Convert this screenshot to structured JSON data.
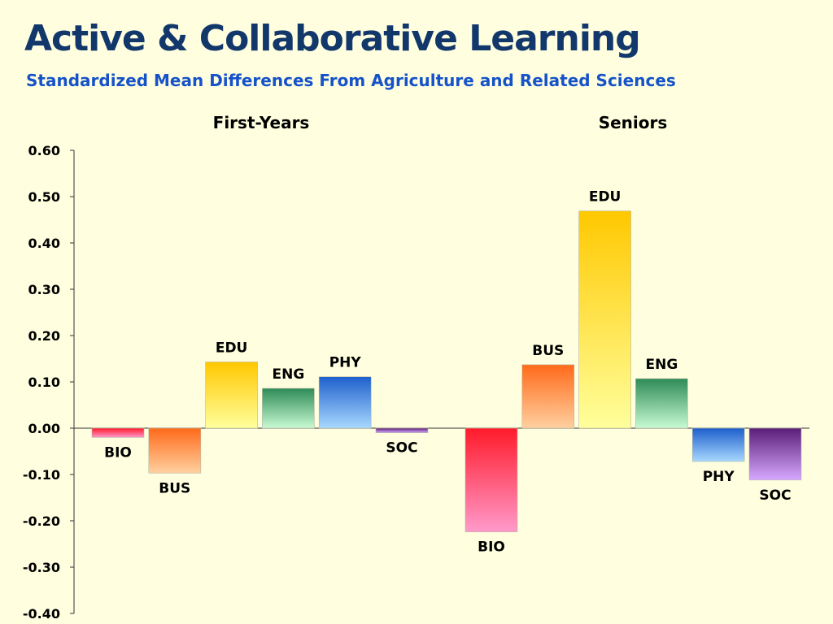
{
  "header": {
    "title": "Active & Collaborative Learning",
    "subtitle": "Standardized Mean Differences From Agriculture and Related Sciences"
  },
  "chart_data": {
    "type": "bar",
    "ylim": [
      -0.4,
      0.6
    ],
    "yticks": [
      "0.60",
      "0.50",
      "0.40",
      "0.30",
      "0.20",
      "0.10",
      "0.00",
      "-0.10",
      "-0.20",
      "-0.30",
      "-0.40"
    ],
    "ytick_values": [
      0.6,
      0.5,
      0.4,
      0.3,
      0.2,
      0.1,
      0.0,
      -0.1,
      -0.2,
      -0.3,
      -0.4
    ],
    "grid": false,
    "groups": [
      {
        "name": "First-Years",
        "categories": [
          "BIO",
          "BUS",
          "EDU",
          "ENG",
          "PHY",
          "SOC"
        ],
        "values": [
          -0.02,
          -0.097,
          0.143,
          0.086,
          0.111,
          -0.01
        ]
      },
      {
        "name": "Seniors",
        "categories": [
          "BIO",
          "BUS",
          "EDU",
          "ENG",
          "PHY",
          "SOC"
        ],
        "values": [
          -0.224,
          0.137,
          0.469,
          0.107,
          -0.072,
          -0.112
        ]
      }
    ],
    "colors": {
      "BIO": [
        "#FF1A2A",
        "#FF9ACB"
      ],
      "BUS": [
        "#FF6A1A",
        "#FFD0A0"
      ],
      "EDU": [
        "#FFC800",
        "#FFFF9C"
      ],
      "ENG": [
        "#2E8B57",
        "#C8FAD2"
      ],
      "PHY": [
        "#1E5FCC",
        "#A8D8FF"
      ],
      "SOC": [
        "#5A1E78",
        "#D7A8FF"
      ]
    }
  }
}
